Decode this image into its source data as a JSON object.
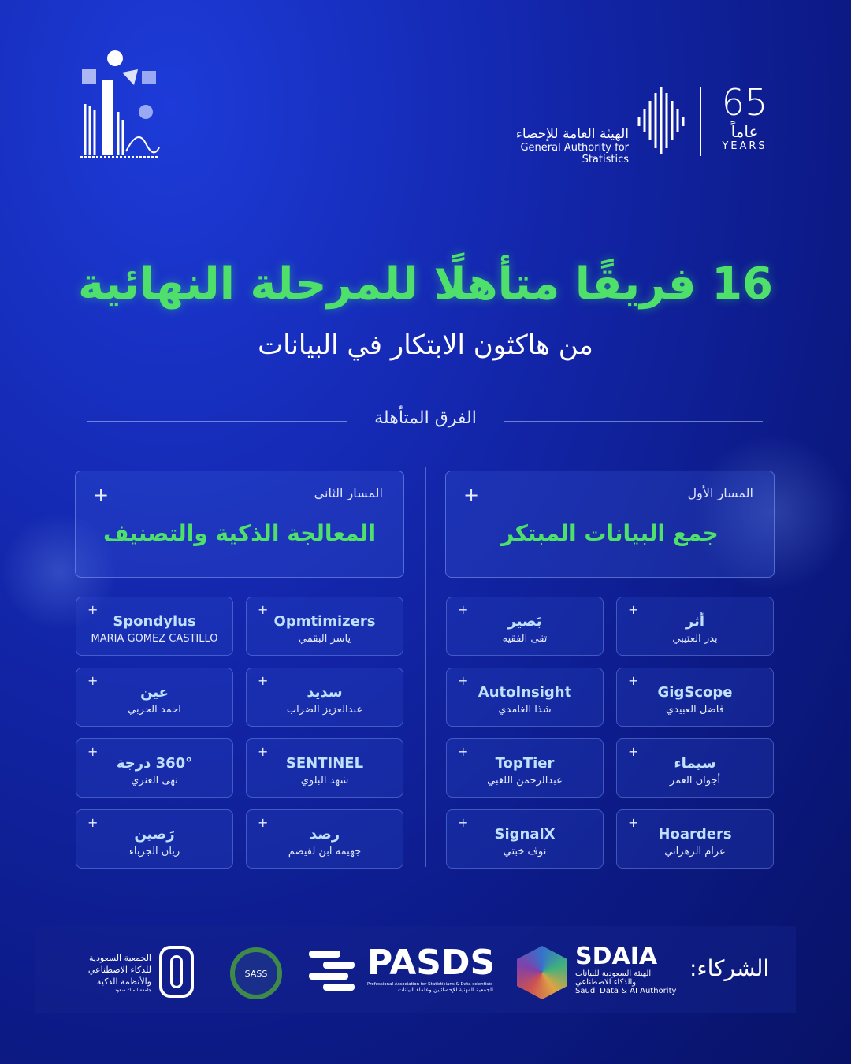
{
  "header": {
    "gas_name_ar": "الهيئة العامة للإحصاء",
    "gas_name_en": "General Authority for Statistics",
    "anniversary_number": "65",
    "anniversary_ar": "عاماً",
    "anniversary_en": "YEARS"
  },
  "title": "16 فريقًا متأهلًا للمرحلة النهائية",
  "subtitle": "من هاكثون الابتكار في البيانات",
  "section_label": "الفرق المتأهلة",
  "tracks": [
    {
      "label": "المسار الأول",
      "name": "جمع البيانات المبتكر",
      "teams": [
        {
          "team": "أثر",
          "member": "بدر العتيبي"
        },
        {
          "team": "بَصير",
          "member": "تقى الفقيه"
        },
        {
          "team": "GigScope",
          "member": "فاضل العبيدي"
        },
        {
          "team": "AutoInsight",
          "member": "شذا الغامدي"
        },
        {
          "team": "سيماء",
          "member": "أجوان العمر"
        },
        {
          "team": "TopTier",
          "member": "عبدالرحمن اللغبي"
        },
        {
          "team": "Hoarders",
          "member": "عزام الزهراني"
        },
        {
          "team": "SignalX",
          "member": "نوف خبتي"
        }
      ]
    },
    {
      "label": "المسار الثاني",
      "name": "المعالجة الذكية والتصنيف",
      "teams": [
        {
          "team": "Opmtimizers",
          "member": "ياسر البقمي"
        },
        {
          "team": "Spondylus",
          "member": "MARIA GOMEZ CASTILLO"
        },
        {
          "team": "سديد",
          "member": "عبدالعزيز الضراب"
        },
        {
          "team": "عين",
          "member": "احمد الحربي"
        },
        {
          "team": "SENTINEL",
          "member": "شهد البلوي"
        },
        {
          "team": "360° درجة",
          "member": "نهى العنزي"
        },
        {
          "team": "رصد",
          "member": "جهيمه ابن لفيصم"
        },
        {
          "team": "رَصين",
          "member": "ريان الجرباء"
        }
      ]
    }
  ],
  "partners": {
    "label": "الشركاء:",
    "sdaia": {
      "name": "SDAIA",
      "ar": "الهيئة السعودية للبيانات والذكاء الاصطناعي",
      "en": "Saudi Data & AI Authority"
    },
    "pasds": {
      "name": "PASDS",
      "en": "Professional Association for Statisticians & Data scientists",
      "ar": "الجمعية المهنية للإحصائيين وعلماء البيانات"
    },
    "sass": {
      "name": "SASS"
    },
    "saudi_ai": {
      "ar": "الجمعية السعودية للذكاء الاصطناعي والأنظمة الذكية",
      "sub": "جامعة الملك سعود"
    }
  },
  "colors": {
    "accent_green": "#4ee06a",
    "background": "#1428b0",
    "team_name": "#bfe0ff"
  }
}
